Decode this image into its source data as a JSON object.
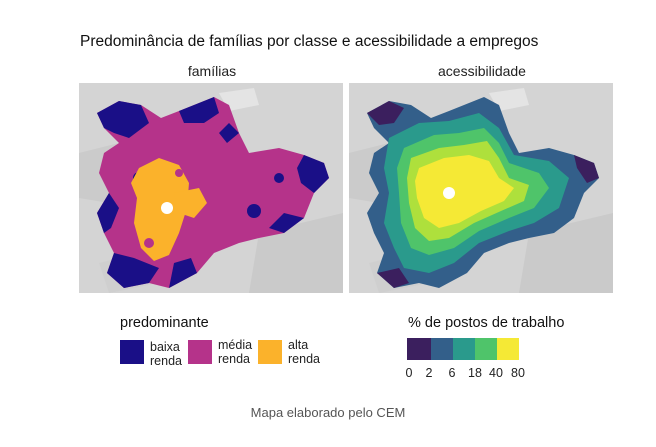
{
  "title": "Predominância de famílias por classe e acessibilidade a empregos",
  "panels": {
    "left_label": "famílias",
    "right_label": "acessibilidade"
  },
  "legend_classes": {
    "title": "predominante",
    "items": [
      {
        "line1": "baixa",
        "line2": "renda",
        "color": "#1a0f87"
      },
      {
        "line1": "média",
        "line2": "renda",
        "color": "#b5338a"
      },
      {
        "line1": "alta",
        "line2": "renda",
        "color": "#fbb22b"
      }
    ]
  },
  "legend_access": {
    "title": "% de postos de trabalho",
    "colors": [
      "#3b1f5e",
      "#335f8a",
      "#2a9a8c",
      "#4fc46a",
      "#aee03c",
      "#f5e935"
    ],
    "ticks": [
      "0",
      "2",
      "6",
      "18",
      "40",
      "80"
    ]
  },
  "caption": "Mapa elaborado pelo CEM"
}
